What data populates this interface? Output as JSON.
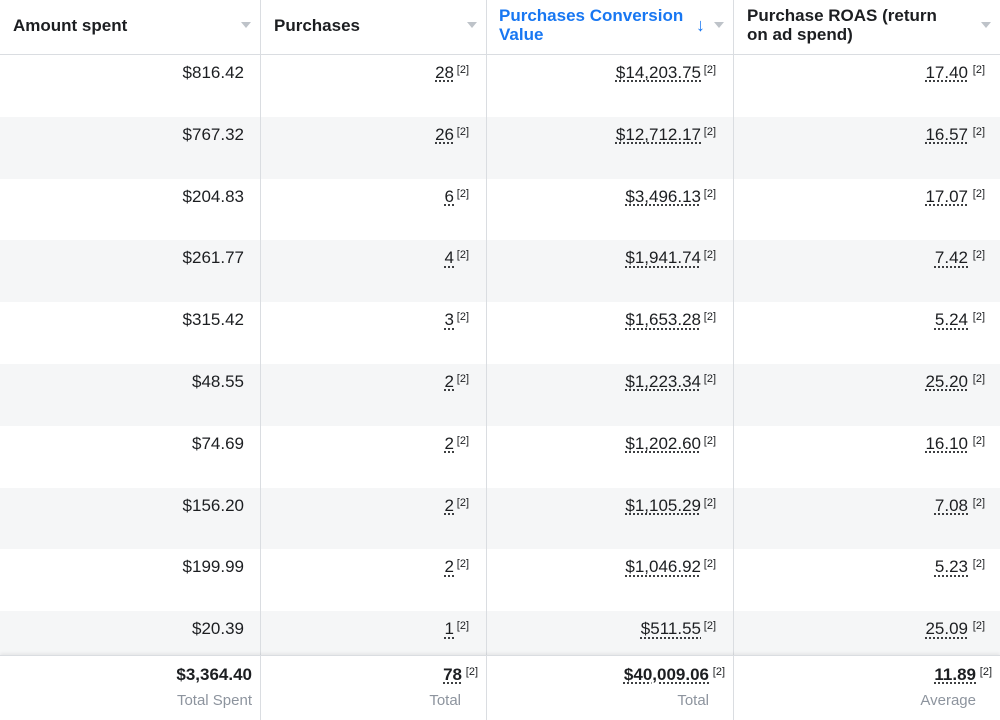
{
  "columns": [
    {
      "label": "Amount spent",
      "sorted": false
    },
    {
      "label": "Purchases",
      "sorted": false
    },
    {
      "label": "Purchases Conversion Value",
      "sorted": true
    },
    {
      "label": "Purchase ROAS (return on ad spend)",
      "sorted": false
    }
  ],
  "sort_arrow": "↓",
  "footnote": "[2]",
  "rows": [
    {
      "spent": "$816.42",
      "purchases": "28",
      "value": "$14,203.75",
      "roas": "17.40"
    },
    {
      "spent": "$767.32",
      "purchases": "26",
      "value": "$12,712.17",
      "roas": "16.57"
    },
    {
      "spent": "$204.83",
      "purchases": "6",
      "value": "$3,496.13",
      "roas": "17.07"
    },
    {
      "spent": "$261.77",
      "purchases": "4",
      "value": "$1,941.74",
      "roas": "7.42"
    },
    {
      "spent": "$315.42",
      "purchases": "3",
      "value": "$1,653.28",
      "roas": "5.24"
    },
    {
      "spent": "$48.55",
      "purchases": "2",
      "value": "$1,223.34",
      "roas": "25.20"
    },
    {
      "spent": "$74.69",
      "purchases": "2",
      "value": "$1,202.60",
      "roas": "16.10"
    },
    {
      "spent": "$156.20",
      "purchases": "2",
      "value": "$1,105.29",
      "roas": "7.08"
    },
    {
      "spent": "$199.99",
      "purchases": "2",
      "value": "$1,046.92",
      "roas": "5.23"
    },
    {
      "spent": "$20.39",
      "purchases": "1",
      "value": "$511.55",
      "roas": "25.09"
    }
  ],
  "totals": {
    "spent": "$3,364.40",
    "spent_label": "Total Spent",
    "purchases": "78",
    "purchases_label": "Total",
    "value": "$40,009.06",
    "value_label": "Total",
    "roas": "11.89",
    "roas_label": "Average"
  },
  "colors": {
    "accent": "#1877f2",
    "row_alt": "#f5f6f7",
    "border": "#dadde1",
    "muted": "#8d949e"
  }
}
